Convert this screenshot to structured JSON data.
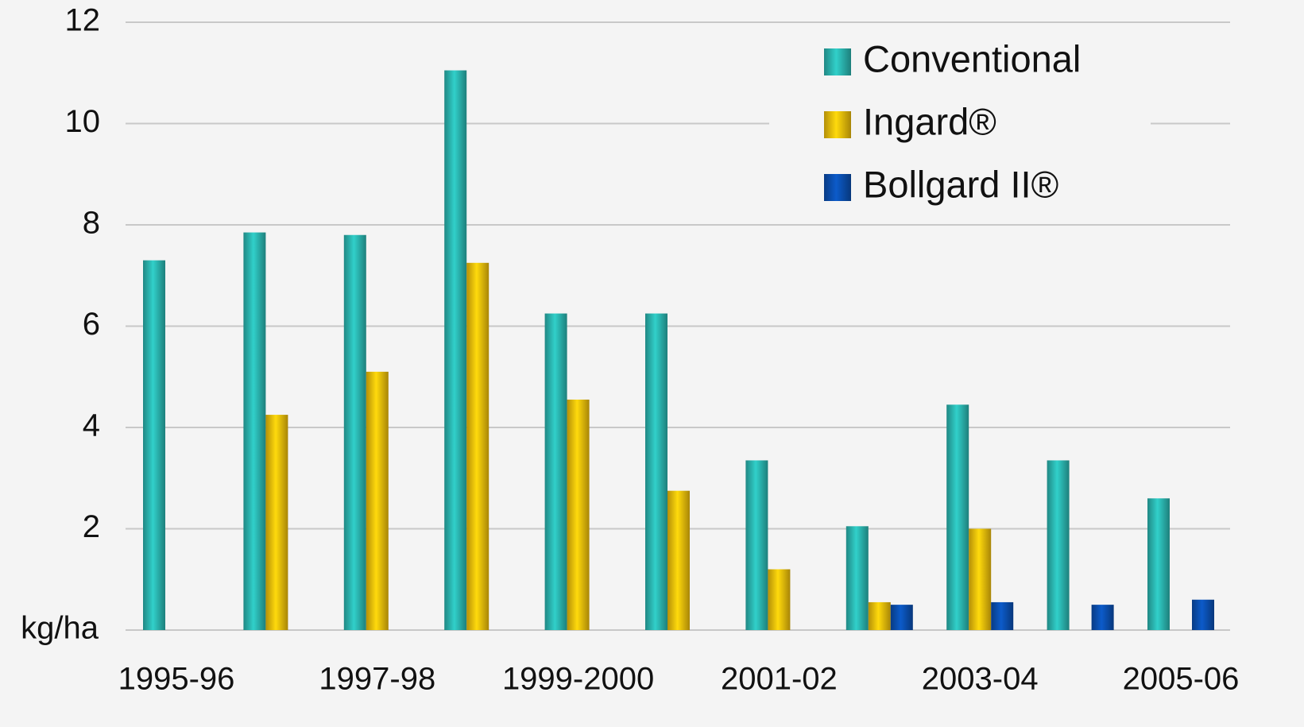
{
  "chart_data": {
    "type": "bar",
    "categories": [
      "1995-96",
      null,
      "1997-98",
      null,
      "1999-2000",
      null,
      "2001-02",
      null,
      "2003-04",
      null,
      "2005-06"
    ],
    "series": [
      {
        "name": "Conventional",
        "color": "#2bb5b0",
        "values": [
          7.3,
          7.85,
          7.8,
          11.05,
          6.25,
          6.25,
          3.35,
          2.05,
          4.45,
          3.35,
          2.6
        ]
      },
      {
        "name": "Ingard®",
        "color": "#f0be0a",
        "values": [
          null,
          4.25,
          5.1,
          7.25,
          4.55,
          2.75,
          1.2,
          0.55,
          2.0,
          null,
          null
        ]
      },
      {
        "name": "Bollgard II®",
        "color": "#0a4fb0",
        "values": [
          null,
          null,
          null,
          null,
          null,
          null,
          null,
          0.5,
          0.55,
          0.5,
          0.6
        ]
      }
    ],
    "ylim": [
      0,
      12
    ],
    "yticks": [
      {
        "value": 0,
        "label": "kg/ha"
      },
      2,
      4,
      6,
      8,
      10,
      12
    ],
    "grid": true,
    "legend": "upper right"
  }
}
